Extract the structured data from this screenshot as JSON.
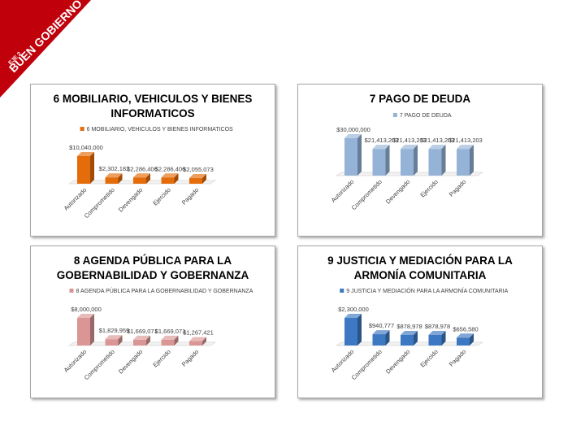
{
  "banner": {
    "axis_label": "EJE 2",
    "title": "BUEN GOBIERNO",
    "color": "#c0000b"
  },
  "chart_data": [
    {
      "type": "bar",
      "title": "6 MOBILIARIO, VEHICULOS Y BIENES INFORMATICOS",
      "title_lines": [
        "6 MOBILIARIO, VEHICULOS Y BIENES",
        "INFORMATICOS"
      ],
      "legend_position": "top",
      "categories": [
        "Autorizado",
        "Comprometido",
        "Devengado",
        "Ejercido",
        "Pagado"
      ],
      "series": [
        {
          "name": "6 MOBILIARIO, VEHICULOS Y BIENES INFORMATICOS",
          "values": [
            10040000,
            2302182,
            2286406,
            2286406,
            2055073
          ],
          "labels": [
            "$10,040,000",
            "$2,302,182",
            "$2,286,406",
            "$2,286,406",
            "$2,055,073"
          ],
          "color": "#e46c0a"
        }
      ],
      "ylim": [
        0,
        10040000
      ]
    },
    {
      "type": "bar",
      "title": "7 PAGO DE DEUDA",
      "title_lines": [
        "7 PAGO DE DEUDA"
      ],
      "legend_position": "top",
      "categories": [
        "Autorizado",
        "Comprometido",
        "Devengado",
        "Ejercido",
        "Pagado"
      ],
      "series": [
        {
          "name": "7 PAGO DE DEUDA",
          "values": [
            30000000,
            21413203,
            21413203,
            21413203,
            21413203
          ],
          "labels": [
            "$30,000,000",
            "$21,413,203",
            "$21,413,203",
            "$21,413,203",
            "$21,413,203"
          ],
          "color": "#95b3d7"
        }
      ],
      "ylim": [
        0,
        30000000
      ]
    },
    {
      "type": "bar",
      "title": "8 AGENDA PÚBLICA PARA LA GOBERNABILIDAD Y GOBERNANZA",
      "title_lines": [
        "8 AGENDA PÚBLICA PARA LA",
        "GOBERNABILIDAD Y GOBERNANZA"
      ],
      "legend_position": "top",
      "categories": [
        "Autorizado",
        "Comprometido",
        "Devengado",
        "Ejercido",
        "Pagado"
      ],
      "series": [
        {
          "name": "8 AGENDA PÚBLICA PARA LA GOBERNABILIDAD Y GOBERNANZA",
          "values": [
            8000000,
            1829959,
            1669071,
            1669071,
            1267421
          ],
          "labels": [
            "$8,000,000",
            "$1,829,959",
            "$1,669,071",
            "$1,669,071",
            "$1,267,421"
          ],
          "color": "#d99694"
        }
      ],
      "ylim": [
        0,
        8000000
      ]
    },
    {
      "type": "bar",
      "title": "9 JUSTICIA Y MEDIACIÓN PARA LA ARMONÍA COMUNITARIA",
      "title_lines": [
        "9 JUSTICIA Y MEDIACIÓN PARA LA",
        "ARMONÍA COMUNITARIA"
      ],
      "legend_position": "top",
      "categories": [
        "Autorizado",
        "Comprometido",
        "Devengado",
        "Ejercido",
        "Pagado"
      ],
      "series": [
        {
          "name": "9 JUSTICIA Y MEDIACIÓN PARA LA ARMONÍA COMUNITARIA",
          "values": [
            2300000,
            940777,
            878978,
            878978,
            656580
          ],
          "labels": [
            "$2,300,000",
            "$940,777",
            "$878,978",
            "$878,978",
            "$656,580"
          ],
          "color": "#3d78c2"
        }
      ],
      "ylim": [
        0,
        2300000
      ]
    }
  ]
}
